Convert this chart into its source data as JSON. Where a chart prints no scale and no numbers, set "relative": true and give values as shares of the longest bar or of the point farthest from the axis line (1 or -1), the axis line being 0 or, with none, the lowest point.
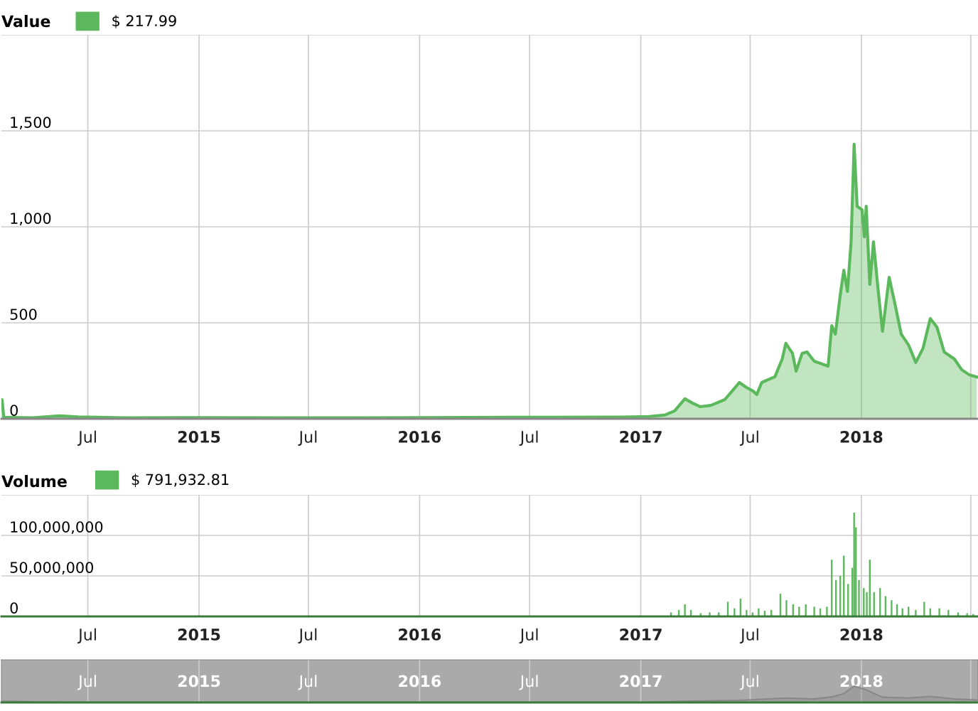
{
  "chart_data": [
    {
      "type": "area",
      "title": "Value",
      "legend": "top left",
      "grid": true,
      "xlim": [
        "2014-02-08",
        "2018-07-13"
      ],
      "xticks": [
        {
          "value": "2014-07-01",
          "label": "Jul"
        },
        {
          "value": "2015-01-01",
          "label": "2015"
        },
        {
          "value": "2015-07-01",
          "label": "Jul"
        },
        {
          "value": "2016-01-01",
          "label": "2016"
        },
        {
          "value": "2016-07-01",
          "label": "Jul"
        },
        {
          "value": "2017-01-01",
          "label": "2017"
        },
        {
          "value": "2017-07-01",
          "label": "Jul"
        },
        {
          "value": "2018-01-01",
          "label": "2018"
        },
        {
          "value": "2018-07-01",
          "label": null
        }
      ],
      "ylim": [
        0,
        2000
      ],
      "yticks": [
        0,
        500,
        {
          "value": 1000,
          "label": "1,000"
        },
        {
          "value": 1500,
          "label": "1,500"
        },
        {
          "value": 2000,
          "label": null
        }
      ],
      "series": [
        {
          "name": "$ 217.99",
          "color": "#5cb85c",
          "x": [
            "2014-02-08",
            "2014-02-09",
            "2014-02-12",
            "2014-04-01",
            "2014-05-15",
            "2014-06-15",
            "2014-09-01",
            "2015-01-01",
            "2015-06-01",
            "2016-01-01",
            "2016-06-01",
            "2016-12-01",
            "2017-01-15",
            "2017-02-10",
            "2017-02-26",
            "2017-03-15",
            "2017-03-28",
            "2017-04-09",
            "2017-04-27",
            "2017-05-20",
            "2017-06-01",
            "2017-06-13",
            "2017-06-25",
            "2017-07-06",
            "2017-07-12",
            "2017-07-20",
            "2017-08-11",
            "2017-08-23",
            "2017-08-29",
            "2017-09-09",
            "2017-09-15",
            "2017-09-25",
            "2017-10-03",
            "2017-10-15",
            "2017-11-07",
            "2017-11-13",
            "2017-11-19",
            "2017-11-27",
            "2017-12-03",
            "2017-12-09",
            "2017-12-15",
            "2017-12-20",
            "2017-12-25",
            "2018-01-02",
            "2018-01-06",
            "2018-01-09",
            "2018-01-15",
            "2018-01-21",
            "2018-01-29",
            "2018-02-05",
            "2018-02-16",
            "2018-02-25",
            "2018-03-08",
            "2018-03-20",
            "2018-04-01",
            "2018-04-13",
            "2018-04-25",
            "2018-05-06",
            "2018-05-18",
            "2018-06-04",
            "2018-06-16",
            "2018-06-28",
            "2018-07-11"
          ],
          "values": [
            100,
            100,
            8,
            5,
            15,
            10,
            5,
            6,
            5,
            6,
            8,
            9,
            12,
            20,
            41,
            104,
            81,
            63,
            70,
            100,
            144,
            189,
            163,
            144,
            126,
            189,
            219,
            311,
            393,
            341,
            248,
            341,
            348,
            300,
            274,
            485,
            441,
            644,
            774,
            663,
            922,
            1430,
            1107,
            1089,
            948,
            1107,
            700,
            922,
            663,
            456,
            737,
            607,
            441,
            385,
            293,
            367,
            522,
            478,
            348,
            311,
            256,
            230,
            218
          ]
        }
      ]
    },
    {
      "type": "bar",
      "title": "Volume",
      "legend": "top left",
      "grid": true,
      "xlim": [
        "2014-02-08",
        "2018-07-13"
      ],
      "xticks": [
        {
          "value": "2014-07-01",
          "label": "Jul"
        },
        {
          "value": "2015-01-01",
          "label": "2015"
        },
        {
          "value": "2015-07-01",
          "label": "Jul"
        },
        {
          "value": "2016-01-01",
          "label": "2016"
        },
        {
          "value": "2016-07-01",
          "label": "Jul"
        },
        {
          "value": "2017-01-01",
          "label": "2017"
        },
        {
          "value": "2017-07-01",
          "label": "Jul"
        },
        {
          "value": "2018-01-01",
          "label": "2018"
        },
        {
          "value": "2018-07-01",
          "label": null
        }
      ],
      "ylim": [
        0,
        150000000
      ],
      "yticks": [
        0,
        {
          "value": 50000000,
          "label": "50,000,000"
        },
        {
          "value": 100000000,
          "label": "100,000,000"
        },
        {
          "value": 150000000,
          "label": null
        }
      ],
      "series": [
        {
          "name": "$ 791,932.81",
          "color": "#5cb85c",
          "x": [
            "2017-02-20",
            "2017-03-05",
            "2017-03-15",
            "2017-03-25",
            "2017-04-10",
            "2017-04-25",
            "2017-05-10",
            "2017-05-25",
            "2017-06-05",
            "2017-06-15",
            "2017-06-25",
            "2017-07-05",
            "2017-07-15",
            "2017-07-25",
            "2017-08-05",
            "2017-08-20",
            "2017-08-30",
            "2017-09-10",
            "2017-09-20",
            "2017-10-01",
            "2017-10-15",
            "2017-10-25",
            "2017-11-05",
            "2017-11-13",
            "2017-11-20",
            "2017-11-27",
            "2017-12-03",
            "2017-12-10",
            "2017-12-17",
            "2017-12-20",
            "2017-12-23",
            "2017-12-28",
            "2018-01-05",
            "2018-01-10",
            "2018-01-15",
            "2018-01-22",
            "2018-02-01",
            "2018-02-10",
            "2018-02-20",
            "2018-03-01",
            "2018-03-10",
            "2018-03-20",
            "2018-04-01",
            "2018-04-15",
            "2018-04-25",
            "2018-05-10",
            "2018-05-25",
            "2018-06-10",
            "2018-06-25",
            "2018-07-05"
          ],
          "values": [
            5000000,
            8000000,
            15000000,
            8000000,
            4000000,
            5000000,
            5000000,
            18000000,
            10000000,
            22000000,
            8000000,
            5000000,
            10000000,
            7000000,
            8000000,
            28000000,
            20000000,
            15000000,
            12000000,
            15000000,
            12000000,
            10000000,
            12000000,
            70000000,
            45000000,
            50000000,
            75000000,
            40000000,
            60000000,
            128000000,
            110000000,
            45000000,
            35000000,
            30000000,
            70000000,
            30000000,
            35000000,
            25000000,
            20000000,
            15000000,
            10000000,
            12000000,
            8000000,
            18000000,
            10000000,
            10000000,
            8000000,
            5000000,
            4000000,
            3000000
          ]
        }
      ]
    },
    {
      "type": "area",
      "relative": true,
      "grid": "x",
      "tick_labels": "x",
      "xlim": [
        "2014-02-08",
        "2018-07-13"
      ],
      "xticks": [
        {
          "value": "2014-07-01",
          "label": "Jul"
        },
        {
          "value": "2015-01-01",
          "label": "2015"
        },
        {
          "value": "2015-07-01",
          "label": "Jul"
        },
        {
          "value": "2016-01-01",
          "label": "2016"
        },
        {
          "value": "2016-07-01",
          "label": "Jul"
        },
        {
          "value": "2017-01-01",
          "label": "2017"
        },
        {
          "value": "2017-07-01",
          "label": "Jul"
        },
        {
          "value": "2018-01-01",
          "label": "2018"
        },
        {
          "value": "2018-07-01",
          "label": null
        }
      ],
      "series": [
        {
          "color": "#888888",
          "x": [
            "2014-02-08",
            "2014-06-01",
            "2015-06-01",
            "2016-06-01",
            "2017-01-01",
            "2017-03-15",
            "2017-06-13",
            "2017-08-29",
            "2017-10-15",
            "2017-11-13",
            "2017-12-03",
            "2017-12-20",
            "2018-01-09",
            "2018-02-05",
            "2018-03-20",
            "2018-04-25",
            "2018-06-04",
            "2018-07-11"
          ],
          "values": [
            0.07,
            0.01,
            0.004,
            0.005,
            0.008,
            0.07,
            0.13,
            0.27,
            0.21,
            0.34,
            0.54,
            1,
            0.77,
            0.32,
            0.27,
            0.37,
            0.22,
            0.15
          ]
        }
      ]
    }
  ]
}
